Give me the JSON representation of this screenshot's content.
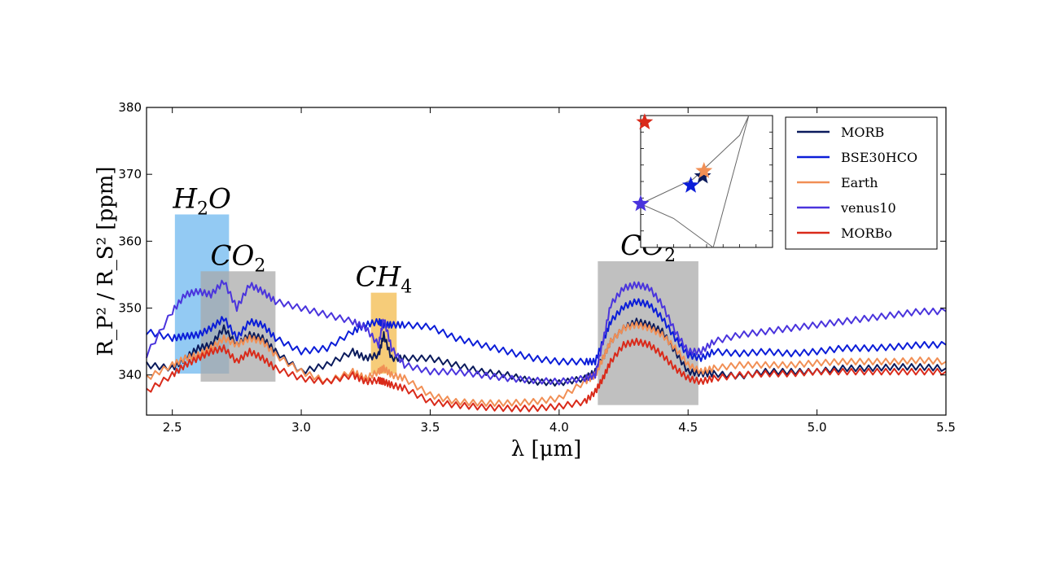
{
  "chart_data": {
    "type": "line",
    "title": "",
    "xlabel": "λ [μm]",
    "ylabel": "R_P² / R_S² [ppm]",
    "xlim": [
      2.4,
      5.5
    ],
    "ylim": [
      334,
      380
    ],
    "xticks": [
      2.5,
      3.0,
      3.5,
      4.0,
      4.5,
      5.0,
      5.5
    ],
    "xtick_labels": [
      "2.5",
      "3.0",
      "3.5",
      "4.0",
      "4.5",
      "5.0",
      "5.5"
    ],
    "yticks": [
      340,
      350,
      360,
      370,
      380
    ],
    "ytick_labels": [
      "340",
      "350",
      "360",
      "370",
      "380"
    ],
    "grid": false,
    "legend_position": "top-right",
    "bands": [
      {
        "label": "H",
        "sub": "2",
        "label_tail": "O",
        "x": [
          2.51,
          2.72
        ],
        "y": [
          340.2,
          364
        ],
        "color": "#6ab6ee"
      },
      {
        "label": "CO",
        "sub": "2",
        "label_tail": "",
        "x": [
          2.61,
          2.9
        ],
        "y": [
          339,
          355.5
        ],
        "color": "#a8a8a8"
      },
      {
        "label": "CH",
        "sub": "4",
        "label_tail": "",
        "x": [
          3.27,
          3.37
        ],
        "y": [
          340.2,
          352.3
        ],
        "color": "#f3b845"
      },
      {
        "label": "CO",
        "sub": "2",
        "label_tail": "",
        "x": [
          4.15,
          4.54
        ],
        "y": [
          335.5,
          357
        ],
        "color": "#a8a8a8"
      }
    ],
    "x": [
      2.4,
      2.5,
      2.55,
      2.6,
      2.65,
      2.7,
      2.75,
      2.8,
      2.85,
      2.9,
      3.0,
      3.1,
      3.2,
      3.25,
      3.3,
      3.32,
      3.35,
      3.4,
      3.5,
      3.6,
      3.7,
      3.8,
      3.9,
      4.0,
      4.1,
      4.14,
      4.17,
      4.2,
      4.25,
      4.3,
      4.35,
      4.4,
      4.45,
      4.5,
      4.55,
      4.6,
      4.7,
      4.8,
      4.9,
      5.0,
      5.1,
      5.2,
      5.3,
      5.4,
      5.5
    ],
    "series": [
      {
        "name": "MORB",
        "color": "#0a1a5c",
        "values": [
          341.5,
          341,
          342.5,
          344,
          344.5,
          347,
          344.5,
          346,
          345.5,
          343.5,
          340.5,
          341.5,
          343.5,
          342.5,
          343,
          346,
          342.5,
          342.5,
          342.5,
          341.5,
          340.5,
          340,
          339,
          338.8,
          339.5,
          340.5,
          342.5,
          345,
          347,
          348,
          347.5,
          346.5,
          343.5,
          340.5,
          340.2,
          340.2,
          339.8,
          340.5,
          340.5,
          340.5,
          341,
          341,
          341.2,
          341.2,
          341
        ]
      },
      {
        "name": "BSE30HCO",
        "color": "#0b1dd8",
        "values": [
          346.5,
          345.5,
          345.8,
          346,
          347,
          348.5,
          345.5,
          348,
          347.5,
          345.5,
          343.5,
          344,
          346.5,
          347.5,
          348,
          347.5,
          347.5,
          347.5,
          347.2,
          345.5,
          344.5,
          343.5,
          342.5,
          342,
          342,
          342,
          345,
          348,
          350.2,
          351,
          350.5,
          348.5,
          345.5,
          343,
          342.5,
          343.5,
          343.2,
          343.5,
          343.2,
          343.5,
          344,
          344,
          344.2,
          344.5,
          344.5
        ]
      },
      {
        "name": "Earth",
        "color": "#f18f55",
        "values": [
          339.5,
          341.5,
          342.5,
          343,
          344,
          345.5,
          344.5,
          345.5,
          345,
          343,
          340.5,
          339,
          340.5,
          339.5,
          340.5,
          341,
          340,
          339.5,
          337,
          336,
          335.8,
          335.8,
          336,
          336.5,
          339,
          340,
          342.5,
          345,
          347,
          347.5,
          347,
          346,
          344,
          341.5,
          340.5,
          341,
          341.5,
          341.5,
          341.5,
          341.8,
          342,
          342,
          342,
          342.2,
          342
        ]
      },
      {
        "name": "venus10",
        "color": "#4a34dd",
        "values": [
          343,
          349.5,
          352,
          352.5,
          352,
          354,
          350,
          353.5,
          352.5,
          351,
          350,
          349,
          348,
          347,
          344.5,
          348.5,
          344,
          341.5,
          340.5,
          340.5,
          340,
          339.5,
          339.2,
          339,
          339.5,
          340,
          345,
          350.5,
          353,
          353.5,
          353,
          350.5,
          346.5,
          343.5,
          343.5,
          345,
          346,
          346.5,
          347,
          347.5,
          348,
          348.5,
          349,
          349.5,
          349.5
        ]
      },
      {
        "name": "MORBo",
        "color": "#d92a1a",
        "values": [
          337.5,
          340,
          341.5,
          342.5,
          343.5,
          344,
          342,
          343.5,
          342.5,
          341,
          339.5,
          339,
          340,
          339,
          339.2,
          339,
          338.5,
          338,
          336,
          335.5,
          335.2,
          335,
          335,
          335.3,
          336,
          337.5,
          339.5,
          342,
          344.5,
          345,
          344.5,
          343,
          341,
          339.5,
          339,
          339.5,
          340,
          340.2,
          340.2,
          340.5,
          340.5,
          340.5,
          340.5,
          340.5,
          340.5
        ]
      }
    ],
    "inset": {
      "description_only": false,
      "stars": [
        {
          "series": "MORB",
          "x": 0.47,
          "y": 0.54,
          "color": "#0a1a5c"
        },
        {
          "series": "BSE30HCO",
          "x": 0.38,
          "y": 0.47,
          "color": "#0b1dd8"
        },
        {
          "series": "Earth",
          "x": 0.48,
          "y": 0.58,
          "color": "#f18f55"
        },
        {
          "series": "venus10",
          "x": 0.0,
          "y": 0.33,
          "color": "#4a34dd"
        },
        {
          "series": "MORBo",
          "x": 0.03,
          "y": 0.95,
          "color": "#d92a1a"
        }
      ]
    }
  }
}
